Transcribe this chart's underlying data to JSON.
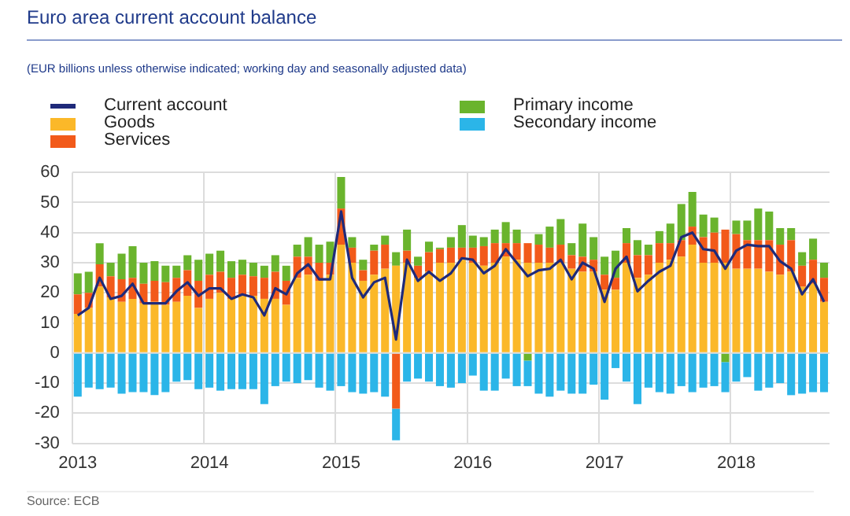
{
  "chart_data": {
    "type": "bar",
    "title": "Euro area current account balance",
    "subtitle": "(EUR billions unless otherwise indicated; working day and seasonally adjusted data)",
    "categories": [
      "2013",
      null,
      null,
      null,
      null,
      null,
      null,
      null,
      null,
      null,
      null,
      null,
      "2014",
      null,
      null,
      null,
      null,
      null,
      null,
      null,
      null,
      null,
      null,
      null,
      "2015",
      null,
      null,
      null,
      null,
      null,
      null,
      null,
      null,
      null,
      null,
      null,
      "2016",
      null,
      null,
      null,
      null,
      null,
      null,
      null,
      null,
      null,
      null,
      null,
      "2017",
      null,
      null,
      null,
      null,
      null,
      null,
      null,
      null,
      null,
      null,
      null,
      "2018",
      null,
      null,
      null,
      null,
      null,
      null,
      null,
      null
    ],
    "series": [
      {
        "name": "Current account",
        "type": "line",
        "color": "#1f2a7a",
        "values": [
          12.5,
          15,
          25,
          18,
          19,
          23,
          16.5,
          16.5,
          16.5,
          20.5,
          23.5,
          19,
          21.5,
          21.5,
          18,
          19.5,
          18.5,
          12.5,
          21.5,
          19.5,
          26.5,
          29.5,
          24.5,
          24.5,
          47,
          25,
          18.5,
          23.5,
          25,
          4.5,
          31,
          24,
          27,
          24,
          26.5,
          31.5,
          31,
          26.5,
          29,
          34.5,
          30,
          25.5,
          27.5,
          28,
          31,
          24.5,
          30,
          28,
          17,
          28,
          32,
          20.5,
          24,
          27,
          29,
          38.5,
          40,
          34.5,
          34,
          28,
          34,
          36,
          35.5,
          35.5,
          30.5,
          28,
          19.5,
          24.5,
          17
        ]
      },
      {
        "name": "Goods",
        "color": "#fbb829",
        "values": [
          13,
          15,
          22,
          18.5,
          17,
          18,
          16.5,
          17,
          16,
          17,
          19,
          15,
          18,
          20,
          18,
          19,
          19,
          18,
          18,
          16,
          25,
          26,
          24,
          26,
          36,
          30,
          24,
          26,
          28,
          29,
          30,
          25,
          27,
          30,
          30,
          31,
          30,
          29,
          30,
          32,
          31,
          30,
          30,
          30,
          30,
          28,
          27,
          27,
          21,
          21,
          30,
          25,
          26,
          30,
          31,
          32,
          36,
          30,
          30,
          30,
          28,
          28,
          28,
          27,
          26,
          27,
          22,
          23,
          17
        ]
      },
      {
        "name": "Services",
        "color": "#f25a1a",
        "values": [
          6.5,
          5,
          7.5,
          7,
          7.5,
          7,
          6.5,
          7,
          7.5,
          8,
          8.5,
          9,
          8,
          7,
          7,
          7,
          6.5,
          7,
          9,
          8,
          7,
          6,
          6,
          4,
          12,
          5,
          3.5,
          8,
          8,
          -18.5,
          4,
          4,
          6.5,
          4.5,
          5,
          4,
          5,
          6.5,
          6.5,
          4.5,
          5.5,
          6.5,
          6,
          5,
          6,
          4.5,
          5,
          4,
          5,
          4,
          6.5,
          7.5,
          6.5,
          6.5,
          5.5,
          5.5,
          6,
          8.5,
          10,
          11,
          11.5,
          9.5,
          9.5,
          10.5,
          10,
          10.5,
          7,
          8,
          8
        ]
      },
      {
        "name": "Primary income",
        "color": "#6ab42d",
        "values": [
          7,
          7,
          7,
          4.5,
          8.5,
          10.5,
          7,
          6.5,
          5.5,
          4,
          5,
          7,
          7,
          7,
          5.5,
          5,
          4.5,
          4,
          5.5,
          5,
          4,
          6.5,
          6,
          7,
          10.5,
          3.5,
          3.5,
          2,
          3,
          4.5,
          7,
          3,
          3.5,
          0.5,
          3.5,
          7.5,
          4,
          3,
          4.5,
          7,
          4.5,
          -2.5,
          3.5,
          7,
          8.5,
          4,
          11,
          7.5,
          6,
          9,
          5,
          5,
          3.5,
          4,
          6.5,
          12,
          11.5,
          7.5,
          5,
          -3,
          4.5,
          6.5,
          10.5,
          9.5,
          5.5,
          4,
          4.5,
          7,
          5
        ]
      },
      {
        "name": "Secondary income",
        "color": "#2bb5e8",
        "values": [
          -14.5,
          -11.5,
          -12,
          -11.5,
          -13.5,
          -13,
          -13,
          -14,
          -13,
          -9.5,
          -9,
          -12,
          -11.5,
          -12.5,
          -12,
          -12,
          -12,
          -17,
          -11,
          -9.5,
          -10,
          -9,
          -11.5,
          -12.5,
          -11,
          -13,
          -13.5,
          -13,
          -14.5,
          -10.5,
          -9.5,
          -8.5,
          -9.5,
          -11,
          -11.5,
          -10,
          -7.5,
          -12.5,
          -12.5,
          -8.5,
          -11,
          -8.5,
          -13.5,
          -14.5,
          -12.5,
          -13.5,
          -13.5,
          -10.5,
          -15.5,
          -5,
          -9.5,
          -17,
          -11.5,
          -13,
          -13.5,
          -11,
          -13,
          -11.5,
          -11,
          -10,
          -9.5,
          -8,
          -12.5,
          -11.5,
          -10,
          -14,
          -13.5,
          -13,
          -13
        ]
      }
    ],
    "stacked": true,
    "ylim": [
      -30,
      60
    ],
    "yticks": [
      -30,
      -20,
      -10,
      0,
      10,
      20,
      30,
      40,
      50,
      60
    ],
    "grid": true,
    "legend": "top",
    "marker": "none",
    "line_style": "solid",
    "annotations": [
      "Source: ECB"
    ]
  }
}
